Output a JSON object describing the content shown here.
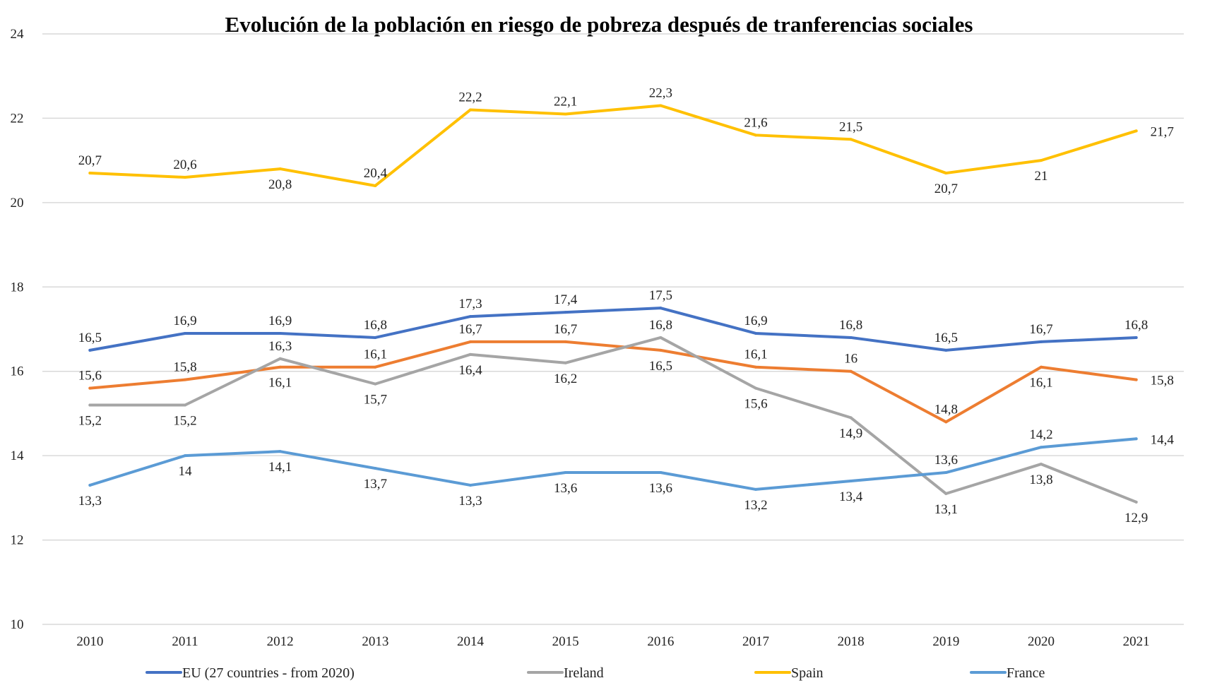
{
  "chart_data": {
    "type": "line",
    "title": "Evolución de la población en riesgo de pobreza después de tranferencias sociales",
    "xlabel": "",
    "ylabel": "",
    "ylim": [
      10,
      24
    ],
    "yticks": [
      "10",
      "12",
      "14",
      "16",
      "18",
      "20",
      "22",
      "24"
    ],
    "grid": true,
    "legend_position": "bottom",
    "categories": [
      "2010",
      "2011",
      "2012",
      "2013",
      "2014",
      "2015",
      "2016",
      "2017",
      "2018",
      "2019",
      "2020",
      "2021"
    ],
    "series": [
      {
        "name": "Spain",
        "color": "#FFC000",
        "values": [
          20.7,
          20.6,
          20.8,
          20.4,
          22.2,
          22.1,
          22.3,
          21.6,
          21.5,
          20.7,
          21,
          21.7
        ],
        "labels": [
          "20,7",
          "20,6",
          "20,8",
          "20,4",
          "22,2",
          "22,1",
          "22,3",
          "21,6",
          "21,5",
          "20,7",
          "21",
          "21,7"
        ]
      },
      {
        "name": "EU (27 countries - from 2020)",
        "color": "#4472C4",
        "values": [
          16.5,
          16.9,
          16.9,
          16.8,
          17.3,
          17.4,
          17.5,
          16.9,
          16.8,
          16.5,
          16.7,
          16.8
        ],
        "labels": [
          "16,5",
          "16,9",
          "16,9",
          "16,8",
          "17,3",
          "17,4",
          "17,5",
          "16,9",
          "16,8",
          "16,5",
          "16,7",
          "16,8"
        ]
      },
      {
        "color": "#ED7D31",
        "values": [
          15.6,
          15.8,
          16.1,
          16.1,
          16.7,
          16.7,
          16.5,
          16.1,
          16,
          14.8,
          16.1,
          15.8
        ],
        "labels": [
          "15,6",
          "15,8",
          "16,1",
          "16,1",
          "16,7",
          "16,7",
          "16,5",
          "16,1",
          "16",
          "14,8",
          "16,1",
          "15,8"
        ]
      },
      {
        "name": "Ireland",
        "color": "#A5A5A5",
        "values": [
          15.2,
          15.2,
          16.3,
          15.7,
          16.4,
          16.2,
          16.8,
          15.6,
          14.9,
          13.1,
          13.8,
          12.9
        ],
        "labels": [
          "15,2",
          "15,2",
          "16,3",
          "15,7",
          "16,4",
          "16,2",
          "16,8",
          "15,6",
          "14,9",
          "13,1",
          "13,8",
          "12,9"
        ]
      },
      {
        "name": "France",
        "color": "#5B9BD5",
        "values": [
          13.3,
          14,
          14.1,
          13.7,
          13.3,
          13.6,
          13.6,
          13.2,
          13.4,
          13.6,
          14.2,
          14.4
        ],
        "labels": [
          "13,3",
          "14",
          "14,1",
          "13,7",
          "13,3",
          "13,6",
          "13,6",
          "13,2",
          "13,4",
          "13,6",
          "14,2",
          "14,4"
        ]
      }
    ],
    "legend": [
      {
        "label": "EU (27 countries - from 2020)",
        "color": "#4472C4"
      },
      {
        "label": "Ireland",
        "color": "#A5A5A5"
      },
      {
        "label": "Spain",
        "color": "#FFC000"
      },
      {
        "label": "France",
        "color": "#5B9BD5"
      }
    ]
  }
}
